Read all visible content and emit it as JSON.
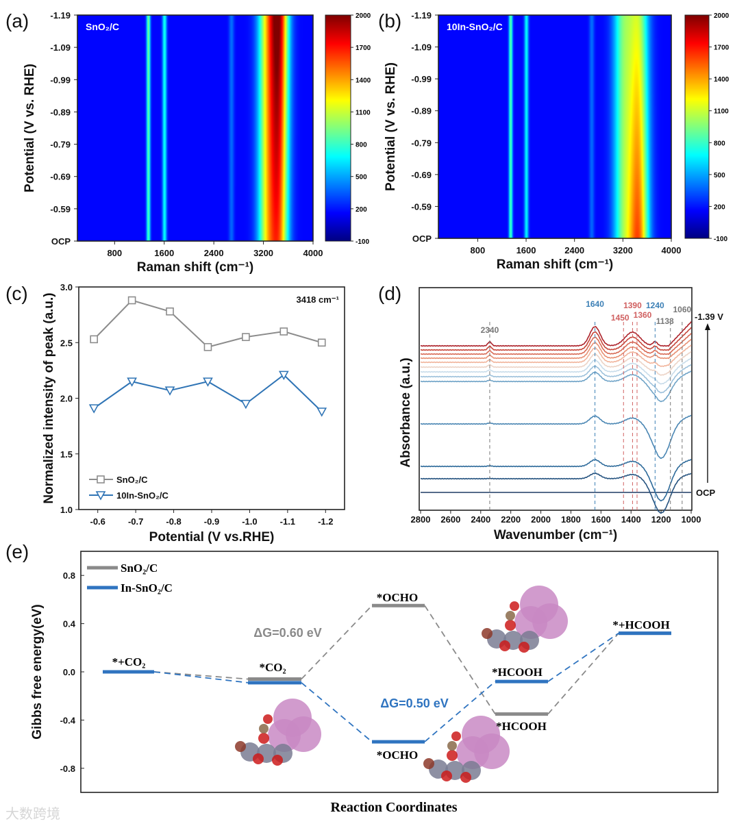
{
  "chart_data": [
    {
      "panel": "(a)",
      "type": "heatmap",
      "title": "SnO₂/C",
      "xlabel": "Raman shift (cm⁻¹)",
      "ylabel": "Potential (V vs. RHE)",
      "xlim": [
        200,
        4000
      ],
      "xticks": [
        800,
        1600,
        2400,
        3200,
        4000
      ],
      "yticks": [
        "-1.19",
        "-1.09",
        "-0.99",
        "-0.89",
        "-0.79",
        "-0.69",
        "-0.59",
        "OCP"
      ],
      "colorbar_ticks": [
        2000,
        1700,
        1400,
        1100,
        800,
        500,
        200,
        -100
      ],
      "color_range": [
        -100,
        2000
      ],
      "baseline": 170,
      "peaks": [
        {
          "center": 1340,
          "width": 22,
          "amp_top": 750,
          "amp_bottom": 650
        },
        {
          "center": 1600,
          "width": 25,
          "amp_top": 560,
          "amp_bottom": 520
        },
        {
          "center": 2680,
          "width": 30,
          "amp_top": 220,
          "amp_bottom": 200
        },
        {
          "center": 3250,
          "width": 110,
          "amp_top": 850,
          "amp_bottom": 850
        },
        {
          "center": 3440,
          "width": 110,
          "amp_top": 1700,
          "amp_bottom": 1250
        }
      ]
    },
    {
      "panel": "(b)",
      "type": "heatmap",
      "title": "10In-SnO₂/C",
      "xlabel": "Raman shift (cm⁻¹)",
      "ylabel": "Potential (V vs. RHE)",
      "xlim": [
        150,
        4000
      ],
      "xticks": [
        800,
        1600,
        2400,
        3200,
        4000
      ],
      "yticks": [
        "-1.19",
        "-1.09",
        "-0.99",
        "-0.89",
        "-0.79",
        "-0.69",
        "-0.59",
        "OCP"
      ],
      "colorbar_ticks": [
        2000,
        1700,
        1400,
        1100,
        800,
        500,
        200,
        -100
      ],
      "color_range": [
        -100,
        2000
      ],
      "baseline": 170,
      "peaks": [
        {
          "center": 1340,
          "width": 22,
          "amp_top": 700,
          "amp_bottom": 650
        },
        {
          "center": 1600,
          "width": 25,
          "amp_top": 520,
          "amp_bottom": 500
        },
        {
          "center": 2680,
          "width": 30,
          "amp_top": 220,
          "amp_bottom": 200
        },
        {
          "center": 3200,
          "width": 120,
          "amp_top": 700,
          "amp_bottom": 700
        },
        {
          "center": 3450,
          "width": 120,
          "amp_top": 850,
          "amp_bottom": 1350
        }
      ]
    },
    {
      "panel": "(c)",
      "type": "line",
      "annotation": "3418 cm⁻¹",
      "xlabel": "Potential (V vs.RHE)",
      "ylabel": "Normalized intensity of peak (a.u.)",
      "xlim": [
        -0.55,
        -1.25
      ],
      "ylim": [
        1.0,
        3.0
      ],
      "xticks": [
        "-0.6",
        "-0.7",
        "-0.8",
        "-0.9",
        "-1.0",
        "-1.1",
        "-1.2"
      ],
      "yticks": [
        "1.0",
        "1.5",
        "2.0",
        "2.5",
        "3.0"
      ],
      "x": [
        -0.59,
        -0.69,
        -0.79,
        -0.89,
        -0.99,
        -1.09,
        -1.19
      ],
      "legend": "bottom-left",
      "series": [
        {
          "name": "SnO₂/C",
          "marker": "square",
          "color": "#8c8c8c",
          "values": [
            2.53,
            2.88,
            2.78,
            2.46,
            2.55,
            2.6,
            2.5
          ]
        },
        {
          "name": "10In-SnO₂/C",
          "marker": "triangle-down",
          "color": "#2f74b5",
          "values": [
            1.91,
            2.15,
            2.07,
            2.15,
            1.95,
            2.21,
            1.88
          ]
        }
      ]
    },
    {
      "panel": "(d)",
      "type": "line",
      "xlabel": "Wavenumber (cm⁻¹)",
      "ylabel": "Absorbance (a.u.)",
      "xlim": [
        2800,
        1000
      ],
      "xticks": [
        2800,
        2600,
        2400,
        2200,
        2000,
        1800,
        1600,
        1400,
        1200,
        1000
      ],
      "top_label": "-1.39 V",
      "bottom_label": "OCP",
      "spectra_offsets": [
        0,
        0.2,
        0.38,
        1.0,
        1.62,
        1.69,
        1.76,
        1.83,
        1.9,
        1.96,
        2.02,
        2.08,
        2.14
      ],
      "spectra_colors": [
        "#1d3a63",
        "#24527f",
        "#2d6a9a",
        "#4a86b3",
        "#6fa3c7",
        "#9dc1db",
        "#c8dcea",
        "#ecd3c6",
        "#f1b49b",
        "#e78f72",
        "#d86a55",
        "#c64539",
        "#ac2129"
      ],
      "peak_marks": [
        {
          "value": 2340,
          "label": "2340",
          "color": "#777777"
        },
        {
          "value": 1640,
          "label": "1640",
          "color": "#3b7fb5"
        },
        {
          "value": 1450,
          "label": "1450",
          "color": "#d06060"
        },
        {
          "value": 1390,
          "label": "1390",
          "color": "#d06060"
        },
        {
          "value": 1360,
          "label": "1360",
          "color": "#d06060"
        },
        {
          "value": 1240,
          "label": "1240",
          "color": "#3b7fb5"
        },
        {
          "value": 1138,
          "label": "1138",
          "color": "#777777"
        },
        {
          "value": 1060,
          "label": "1060",
          "color": "#777777"
        }
      ]
    },
    {
      "panel": "(e)",
      "type": "line",
      "subtype": "energy-diagram",
      "xlabel": "Reaction Coordinates",
      "ylabel": "Gibbs free energy(eV)",
      "ylim": [
        -1.0,
        1.0
      ],
      "yticks": [
        "0.8",
        "0.4",
        "0.0",
        "-0.4",
        "-0.8"
      ],
      "ytick_values": [
        0.8,
        0.4,
        0.0,
        -0.4,
        -0.8
      ],
      "states": [
        "*+CO₂",
        "*CO₂",
        "*OCHO",
        "*HCOOH",
        "*+HCOOH"
      ],
      "legend": "top-left",
      "series": [
        {
          "name": "SnO₂/C",
          "color": "#8a8a8a",
          "values": [
            0.0,
            -0.06,
            0.55,
            -0.35,
            0.32
          ]
        },
        {
          "name": "In-SnO₂/C",
          "color": "#2f74c0",
          "values": [
            0.0,
            -0.09,
            -0.58,
            -0.08,
            0.32
          ]
        }
      ],
      "annotations": [
        {
          "text": "ΔG=0.60 eV",
          "color": "#8a8a8a"
        },
        {
          "text": "ΔG=0.50 eV",
          "color": "#2f74c0"
        }
      ]
    }
  ],
  "watermark": "大数跨境"
}
